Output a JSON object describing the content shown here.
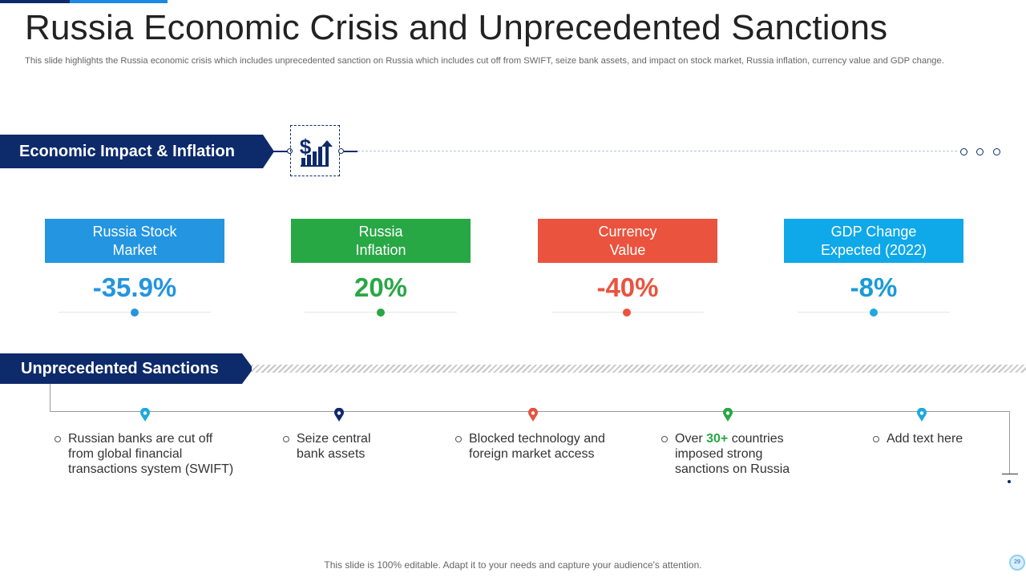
{
  "title": "Russia Economic Crisis and Unprecedented Sanctions",
  "subtitle": "This slide highlights the Russia economic crisis which includes unprecedented sanction on Russia which includes cut off from SWIFT,  seize bank assets, and impact on stock market, Russia inflation, currency value and GDP change.",
  "economic_section": {
    "label": "Economic Impact & Inflation",
    "icon": "dollar-chart-icon"
  },
  "stats": [
    {
      "label": "Russia Stock\nMarket",
      "value": "-35.9%",
      "color": "#2495e0"
    },
    {
      "label": "Russia\nInflation",
      "value": "20%",
      "color": "#28a745"
    },
    {
      "label": "Currency\nValue",
      "value": "-40%",
      "color": "#ea533e"
    },
    {
      "label": "GDP Change\nExpected (2022)",
      "value": "-8%",
      "color": "#0fa8e8"
    }
  ],
  "sanctions_section": {
    "label": "Unprecedented Sanctions",
    "items": [
      {
        "text": "Russian banks are cut off from global financial transactions system (SWIFT)",
        "pin_color": "#1ea8e0"
      },
      {
        "text": "Seize central bank assets",
        "pin_color": "#10296b"
      },
      {
        "text": "Blocked technology  and foreign market access",
        "pin_color": "#e8533d"
      },
      {
        "pre": "Over ",
        "highlight": "30+",
        "post": " countries imposed strong sanctions on Russia",
        "pin_color": "#28a745",
        "highlight_color": "#28a745"
      },
      {
        "text": "Add text here",
        "pin_color": "#1ea8e0"
      }
    ]
  },
  "footer": "This slide is 100% editable. Adapt it to your needs and capture your audience's attention.",
  "page_number": "29",
  "colors": {
    "navy": "#0d2a6b",
    "title": "#222222"
  }
}
